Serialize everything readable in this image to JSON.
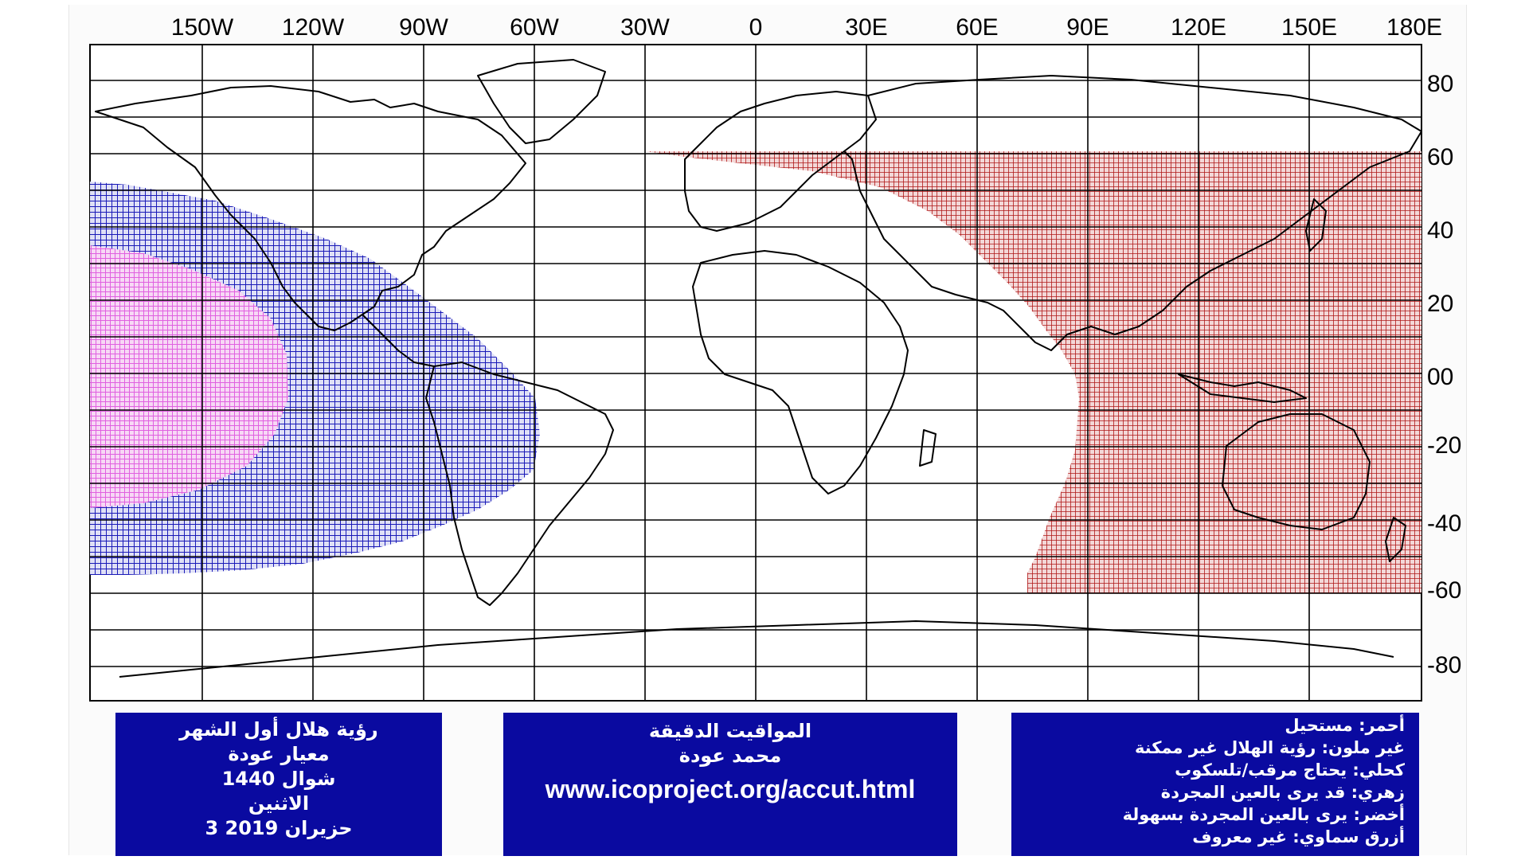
{
  "map": {
    "lon_labels": [
      "150W",
      "120W",
      "90W",
      "60W",
      "30W",
      "0",
      "30E",
      "60E",
      "90E",
      "120E",
      "150E",
      "180E"
    ],
    "lat_labels": [
      "80",
      "60",
      "40",
      "20",
      "00",
      "-20",
      "-40",
      "-60",
      "-80"
    ],
    "colors": {
      "impossible": "#b01818",
      "telescope": "#1a1ab8",
      "naked_eye_maybe": "#e060e0",
      "grid": "#000000",
      "coast": "#000000"
    },
    "zones": [
      {
        "name": "red",
        "meaning": "impossible",
        "lon_range": [
          -30,
          180
        ],
        "lat_range": [
          -60,
          61
        ]
      },
      {
        "name": "blue",
        "meaning": "needs optical aid",
        "lon_range": [
          -180,
          -57
        ],
        "lat_range": [
          -55,
          52
        ]
      },
      {
        "name": "pink",
        "meaning": "may be seen by naked eye",
        "lon_range": [
          -180,
          -125
        ],
        "lat_range": [
          -37,
          34
        ]
      }
    ]
  },
  "panels": {
    "title": {
      "lines": [
        "رؤية هلال أول الشهر",
        "معيار عودة",
        "شوال 1440",
        "الاثنين",
        "3 حزيران 2019"
      ]
    },
    "credit": {
      "lines": [
        "المواقيت الدقيقة",
        "محمد عودة"
      ],
      "url": "www.icoproject.org/accut.html"
    },
    "legend": {
      "lines": [
        "أحمر: مستحيل",
        "غير ملون: رؤية الهلال غير ممكنة",
        "كحلي: يحتاج مرقب/تلسكوب",
        "زهري: قد يرى بالعين المجردة",
        "أخضر: يرى بالعين المجردة بسهولة",
        "أزرق سماوي: غير معروف"
      ]
    }
  }
}
